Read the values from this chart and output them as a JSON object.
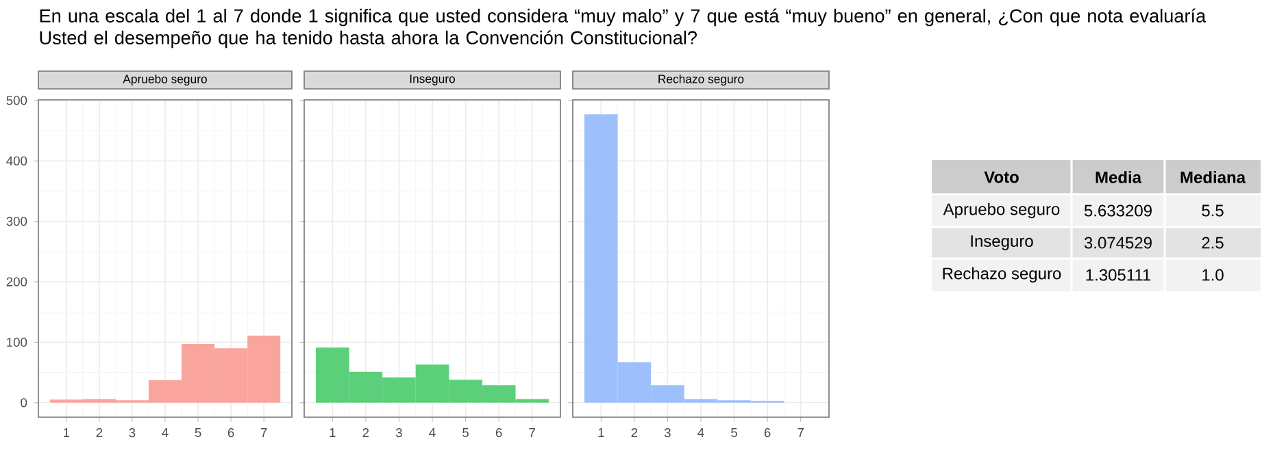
{
  "chart_data": [
    {
      "type": "histogram",
      "title": "En una escala del 1 al 7 donde 1 significa que usted considera “muy malo” y 7 que está “muy bueno” en general, ¿Con que nota evaluaría Usted el desempeño que ha tenido hasta ahora la Convención Constitucional?",
      "subtitle": "Apruebo seguro",
      "bins": [
        0.5,
        1.5,
        2.5,
        3.5,
        4.5,
        5.5,
        6.5,
        7.5
      ],
      "values": [
        5,
        6,
        4,
        37,
        97,
        90,
        111
      ],
      "color": "#f9a59e",
      "xlim": [
        0.15,
        7.85
      ],
      "ylim": [
        -24,
        501
      ],
      "xticks": [
        1,
        2,
        3,
        4,
        5,
        6,
        7
      ],
      "yticks": [
        0,
        100,
        200,
        300,
        400,
        500
      ],
      "grid": true
    },
    {
      "type": "histogram",
      "subtitle": "Inseguro",
      "bins": [
        0.5,
        1.5,
        2.5,
        3.5,
        4.5,
        5.5,
        6.5,
        7.5
      ],
      "values": [
        91,
        51,
        42,
        63,
        38,
        29,
        6
      ],
      "color": "#5ccf7a",
      "xlim": [
        0.15,
        7.85
      ],
      "ylim": [
        -24,
        501
      ],
      "xticks": [
        1,
        2,
        3,
        4,
        5,
        6,
        7
      ],
      "yticks": [
        0,
        100,
        200,
        300,
        400,
        500
      ],
      "grid": true,
      "tick_labels": "x"
    },
    {
      "type": "histogram",
      "subtitle": "Rechazo seguro",
      "bins": [
        0.5,
        1.5,
        2.5,
        3.5,
        4.5,
        5.5,
        6.5
      ],
      "values": [
        477,
        67,
        29,
        6,
        4,
        3
      ],
      "color": "#9dc0fd",
      "xlim": [
        0.15,
        7.85
      ],
      "ylim": [
        -24,
        501
      ],
      "xticks": [
        1,
        2,
        3,
        4,
        5,
        6,
        7
      ],
      "yticks": [
        0,
        100,
        200,
        300,
        400,
        500
      ],
      "grid": true,
      "tick_labels": "x"
    },
    {
      "type": "other",
      "annotations": [
        "Voto",
        "Media",
        "Mediana",
        "Apruebo seguro",
        "5.633209",
        "5.5",
        "Inseguro",
        "3.074529",
        "2.5",
        "Rechazo seguro",
        "1.305111",
        "1.0"
      ]
    }
  ]
}
